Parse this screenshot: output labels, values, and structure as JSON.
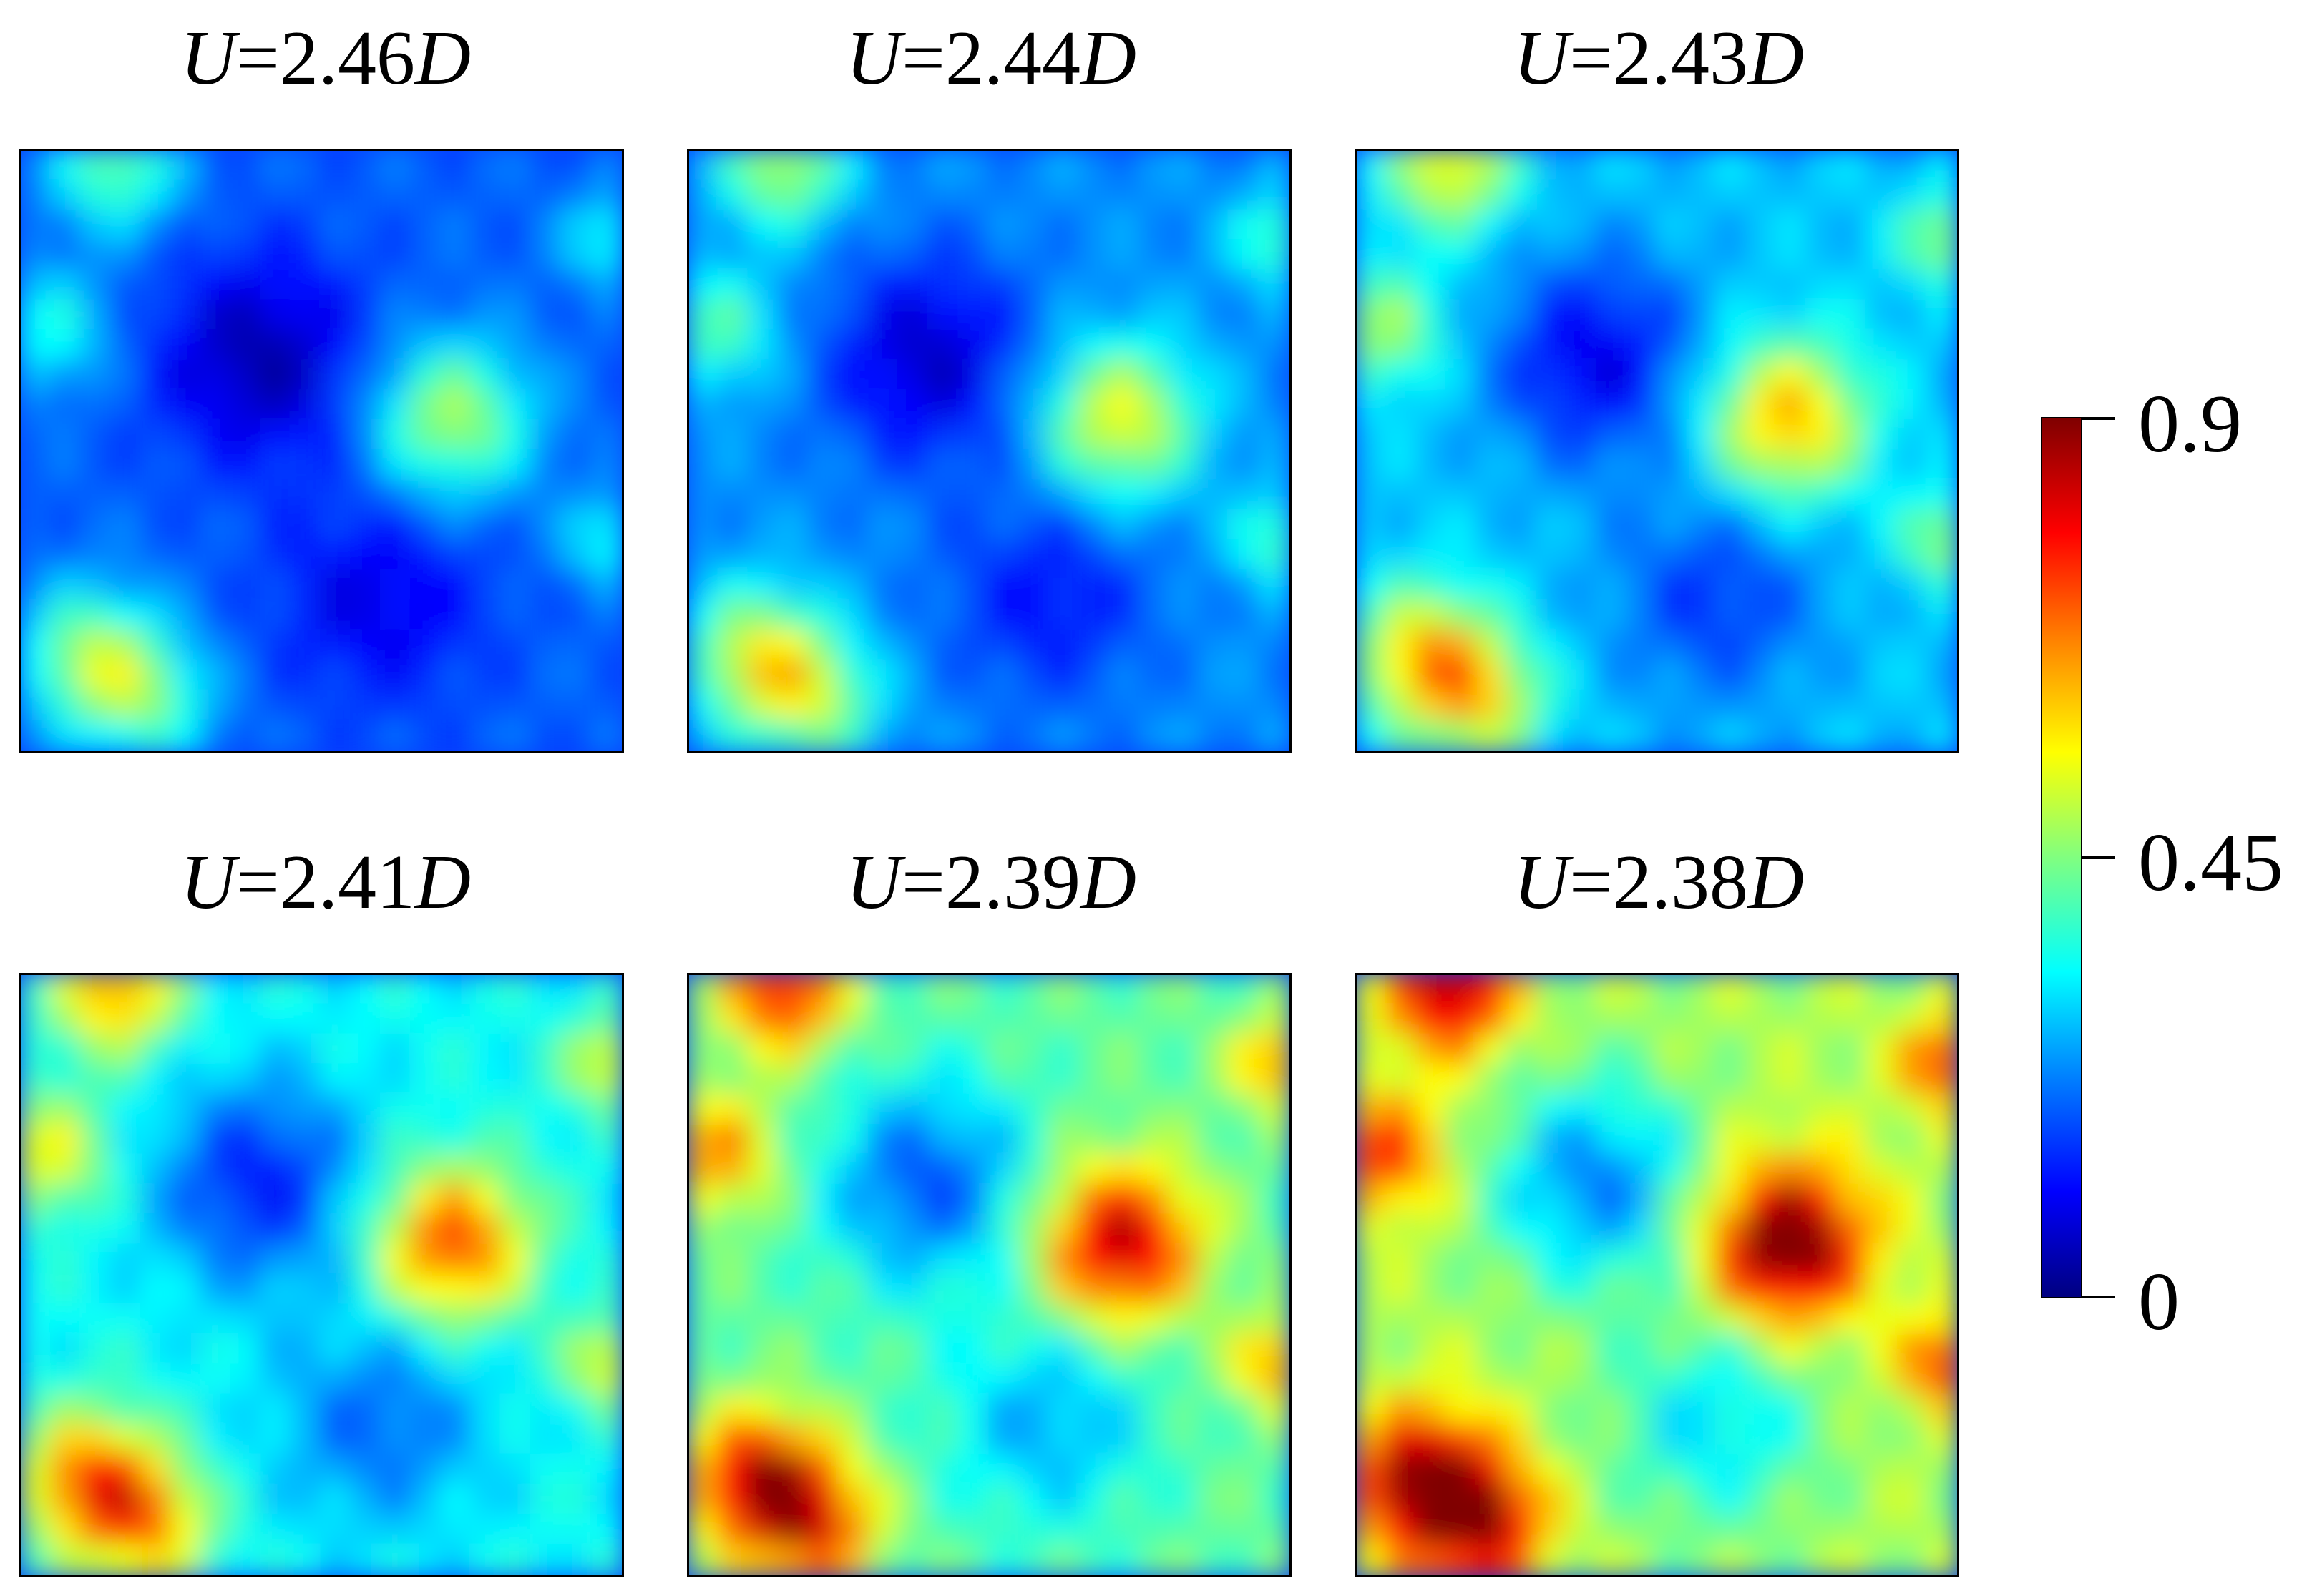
{
  "chart_data": [
    {
      "type": "heatmap",
      "title_prefix": "U",
      "title_value": "=2.46",
      "title_suffix": "D",
      "level": 0.22
    },
    {
      "type": "heatmap",
      "title_prefix": "U",
      "title_value": "=2.44",
      "title_suffix": "D",
      "level": 0.27
    },
    {
      "type": "heatmap",
      "title_prefix": "U",
      "title_value": "=2.43",
      "title_suffix": "D",
      "level": 0.33
    },
    {
      "type": "heatmap",
      "title_prefix": "U",
      "title_value": "=2.41",
      "title_suffix": "D",
      "level": 0.4
    },
    {
      "type": "heatmap",
      "title_prefix": "U",
      "title_value": "=2.39",
      "title_suffix": "D",
      "level": 0.5
    },
    {
      "type": "heatmap",
      "title_prefix": "U",
      "title_value": "=2.38",
      "title_suffix": "D",
      "level": 0.58
    }
  ],
  "colorbar": {
    "colormap": "jet",
    "min": 0,
    "max": 0.9,
    "ticks": [
      {
        "value": 0.9,
        "label": "0.9"
      },
      {
        "value": 0.45,
        "label": "0.45"
      },
      {
        "value": 0,
        "label": "0"
      }
    ]
  }
}
